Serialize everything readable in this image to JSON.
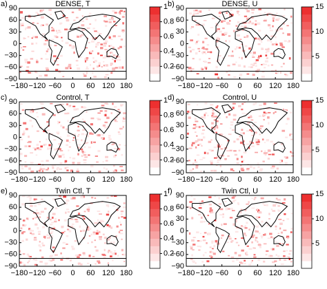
{
  "panels": [
    {
      "label": "a)",
      "title": "DENSE, T",
      "colorbar_ticks": [
        1,
        0.8,
        0.6,
        0.4,
        0.2
      ]
    },
    {
      "label": "b)",
      "title": "DENSE, U",
      "colorbar_ticks": [
        15,
        10,
        5
      ]
    },
    {
      "label": "c)",
      "title": "Control, T",
      "colorbar_ticks": [
        1,
        0.8,
        0.6,
        0.4,
        0.2
      ]
    },
    {
      "label": "d)",
      "title": "Control, U",
      "colorbar_ticks": [
        15,
        10,
        5
      ]
    },
    {
      "label": "e)",
      "title": "Twin Ctl, T",
      "colorbar_ticks": [
        1,
        0.8,
        0.6,
        0.4,
        0.2
      ]
    },
    {
      "label": "f)",
      "title": "Twin Ctl, U",
      "colorbar_ticks": [
        15,
        10,
        5
      ]
    }
  ],
  "x_ticks": [
    "−180",
    "−120",
    "−60",
    "0",
    "60",
    "120",
    "180"
  ],
  "y_ticks": [
    "90",
    "60",
    "30",
    "0",
    "−30",
    "−60",
    "−90"
  ]
}
